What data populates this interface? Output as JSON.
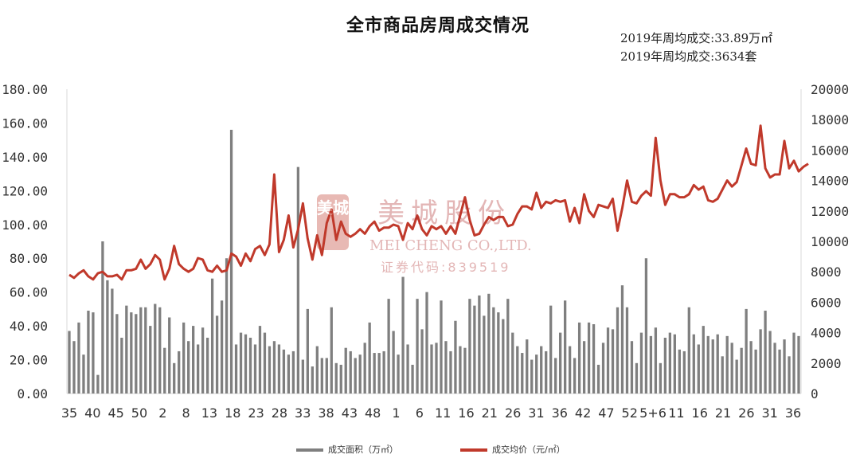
{
  "title": "全市商品房周成交情况",
  "stats": [
    "2019年周均成交:33.89万㎡",
    "2019年周均成交:3634套"
  ],
  "watermark": {
    "name_cn": "美城股份",
    "name_en": "MEI CHENG CO.,LTD.",
    "code": "证券代码:839519",
    "logo": "美城"
  },
  "colors": {
    "bar": "#7f7f7f",
    "line": "#c0392b",
    "axis": "#d9d9d9"
  },
  "chart_data": {
    "type": "bar+line",
    "y_left": {
      "min": 0,
      "max": 180,
      "ticks": [
        "0.00",
        "20.00",
        "40.00",
        "60.00",
        "80.00",
        "100.00",
        "120.00",
        "140.00",
        "160.00",
        "180.00"
      ]
    },
    "y_right": {
      "min": 0,
      "max": 20000,
      "ticks": [
        "0",
        "2000",
        "4000",
        "6000",
        "8000",
        "10000",
        "12000",
        "14000",
        "16000",
        "18000",
        "20000"
      ]
    },
    "x_tick_labels": [
      "35",
      "40",
      "45",
      "50",
      "2",
      "8",
      "13",
      "18",
      "23",
      "28",
      "33",
      "38",
      "43",
      "48",
      "1",
      "6",
      "11",
      "16",
      "21",
      "26",
      "31",
      "36",
      "42",
      "47",
      "52",
      "5+6",
      "11",
      "16",
      "21",
      "26",
      "31",
      "36"
    ],
    "legend_position": "bottom",
    "series": [
      {
        "name": "成交面积（万㎡）",
        "type": "bar",
        "axis": "left",
        "values": [
          37,
          31,
          42,
          23,
          49,
          48,
          11,
          90,
          67,
          62,
          47,
          33,
          52,
          48,
          47,
          51,
          51,
          40,
          53,
          51,
          27,
          45,
          18,
          25,
          42,
          31,
          40,
          29,
          39,
          33,
          68,
          46,
          55,
          80,
          156,
          29,
          36,
          35,
          33,
          29,
          40,
          36,
          28,
          31,
          29,
          26,
          23,
          25,
          134,
          20,
          50,
          16,
          28,
          21,
          21,
          51,
          18,
          17,
          27,
          25,
          21,
          23,
          30,
          42,
          24,
          24,
          25,
          56,
          37,
          23,
          69,
          29,
          17,
          56,
          38,
          60,
          29,
          30,
          55,
          31,
          25,
          43,
          28,
          27,
          56,
          52,
          58,
          46,
          59,
          51,
          48,
          44,
          56,
          36,
          28,
          24,
          32,
          20,
          23,
          28,
          25,
          52,
          21,
          36,
          55,
          28,
          21,
          42,
          31,
          42,
          41,
          17,
          30,
          39,
          38,
          51,
          64,
          51,
          31,
          18,
          36,
          80,
          34,
          39,
          18,
          33,
          36,
          35,
          26,
          25,
          51,
          35,
          29,
          40,
          34,
          32,
          35,
          22,
          34,
          30,
          20,
          27,
          50,
          31,
          26,
          38,
          49,
          37,
          30,
          26,
          32,
          22,
          36,
          34
        ]
      },
      {
        "name": "成交均价（元/㎡）",
        "type": "line",
        "axis": "right",
        "values": [
          7800,
          7600,
          7900,
          8100,
          7700,
          7500,
          7900,
          8000,
          7700,
          7700,
          7800,
          7500,
          8100,
          8100,
          8200,
          8800,
          8200,
          8500,
          9100,
          8800,
          7500,
          8200,
          9700,
          8500,
          8200,
          8000,
          8200,
          8900,
          8800,
          8100,
          8000,
          8400,
          8000,
          8100,
          9200,
          9000,
          8400,
          9200,
          8700,
          9500,
          9700,
          9100,
          9800,
          14400,
          9300,
          10100,
          11700,
          9600,
          10800,
          12500,
          10200,
          8800,
          10400,
          9100,
          11200,
          12100,
          10100,
          11300,
          10500,
          10300,
          10500,
          10800,
          10500,
          11000,
          11300,
          10700,
          10900,
          10900,
          11100,
          11000,
          10100,
          11200,
          10800,
          11700,
          10800,
          10400,
          11000,
          10800,
          11000,
          10500,
          11000,
          10500,
          11700,
          12900,
          11400,
          10400,
          10500,
          11100,
          11600,
          11400,
          11600,
          11600,
          11000,
          11100,
          11800,
          12300,
          12300,
          12100,
          13200,
          12200,
          12600,
          12500,
          12700,
          12600,
          12700,
          11300,
          12200,
          11200,
          13100,
          12000,
          11600,
          12400,
          12300,
          12200,
          12800,
          10700,
          12200,
          14000,
          12600,
          12500,
          13000,
          13300,
          13000,
          16800,
          14000,
          12400,
          13100,
          13100,
          12900,
          12900,
          13100,
          13700,
          13400,
          13600,
          12700,
          12600,
          12800,
          13400,
          14000,
          13600,
          13900,
          15000,
          16100,
          15100,
          15000,
          17600,
          14800,
          14200,
          14400,
          14400,
          16600,
          14800,
          15300,
          14600,
          14900,
          15100
        ]
      }
    ]
  }
}
